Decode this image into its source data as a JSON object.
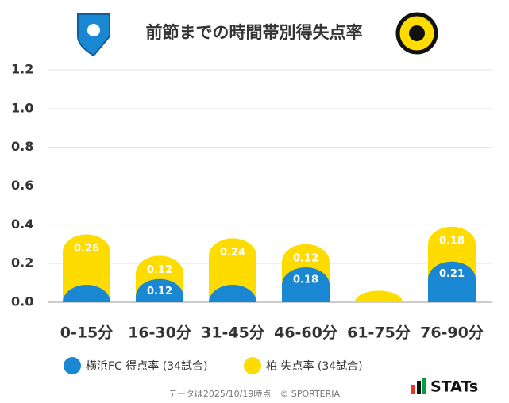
{
  "chart_data": {
    "type": "bar",
    "stacked": true,
    "title": "前節までの時間帯別得失点率",
    "categories": [
      "0-15分",
      "16-30分",
      "31-45分",
      "46-60分",
      "61-75分",
      "76-90分"
    ],
    "series": [
      {
        "name": "横浜FC 得点率 (34試合)",
        "color": "#1a87d2",
        "values": [
          0.09,
          0.12,
          0.09,
          0.18,
          0,
          0.21
        ],
        "value_labels": [
          null,
          "0.12",
          null,
          "0.18",
          null,
          "0.21"
        ]
      },
      {
        "name": "柏 失点率 (34試合)",
        "color": "#ffdc00",
        "values": [
          0.26,
          0.12,
          0.24,
          0.12,
          0.06,
          0.18
        ],
        "value_labels": [
          "0.26",
          "0.12",
          "0.24",
          "0.12",
          null,
          "0.18"
        ]
      }
    ],
    "ylim": [
      0,
      1.2
    ],
    "yticks": [
      {
        "value": 0,
        "label": "0.0"
      },
      {
        "value": 0.2,
        "label": "0.2"
      },
      {
        "value": 0.4,
        "label": "0.4"
      },
      {
        "value": 0.6,
        "label": "0.6"
      },
      {
        "value": 0.8,
        "label": "0.8"
      },
      {
        "value": 1.0,
        "label": "1.0"
      },
      {
        "value": 1.2,
        "label": "1.2"
      }
    ],
    "grid": true,
    "footnote": "データは2025/10/19時点　© SPORTERIA",
    "logo_text": "STATs"
  }
}
